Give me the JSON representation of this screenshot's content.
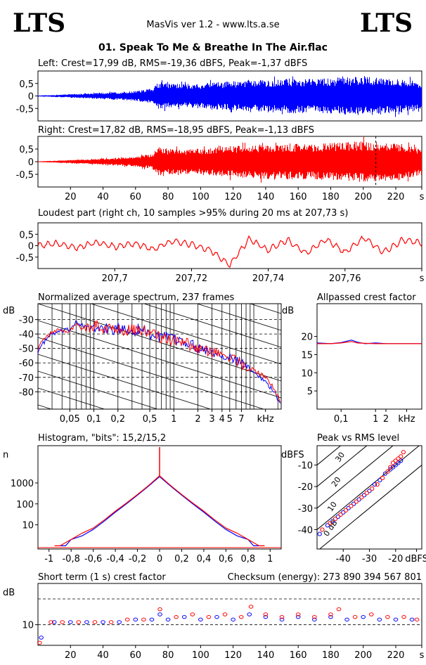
{
  "header": {
    "logo_left": "LTS",
    "logo_right": "LTS",
    "app_title": "MasVis ver 1.2 - www.lts.a.se",
    "file_title": "01. Speak To Me & Breathe In The Air.flac"
  },
  "colors": {
    "left": "#0000ff",
    "right": "#ff0000",
    "axis": "#000000"
  },
  "chart_data": [
    {
      "id": "left-waveform",
      "type": "area",
      "title": "Left: Crest=17,99 dB, RMS=-19,36 dBFS, Peak=-1,37 dBFS",
      "yticks": [
        "0,5",
        "0",
        "-0,5"
      ],
      "ytick_values": [
        0.5,
        0,
        -0.5
      ],
      "ylim": [
        -1,
        1
      ],
      "xlim": [
        0,
        236
      ],
      "series": [
        {
          "color": "#0000ff",
          "envelope_t": [
            0,
            10,
            20,
            30,
            40,
            50,
            60,
            65,
            70,
            73,
            76,
            80,
            90,
            100,
            110,
            120,
            130,
            140,
            150,
            160,
            170,
            180,
            190,
            200,
            210,
            220,
            230,
            236
          ],
          "envelope_amp": [
            0.02,
            0.04,
            0.07,
            0.1,
            0.13,
            0.16,
            0.2,
            0.25,
            0.3,
            0.5,
            0.55,
            0.5,
            0.48,
            0.5,
            0.55,
            0.6,
            0.62,
            0.65,
            0.68,
            0.7,
            0.68,
            0.72,
            0.75,
            0.78,
            0.75,
            0.72,
            0.62,
            0.5
          ]
        }
      ]
    },
    {
      "id": "right-waveform",
      "type": "area",
      "title": "Right: Crest=17,82 dB, RMS=-18,95 dBFS, Peak=-1,13 dBFS",
      "yticks": [
        "0,5",
        "0",
        "-0,5"
      ],
      "ytick_values": [
        0.5,
        0,
        -0.5
      ],
      "ylim": [
        -1,
        1
      ],
      "xlim": [
        0,
        236
      ],
      "xticks": [
        "20",
        "40",
        "60",
        "80",
        "100",
        "120",
        "140",
        "160",
        "180",
        "200",
        "220",
        "s"
      ],
      "xtick_values": [
        20,
        40,
        60,
        80,
        100,
        120,
        140,
        160,
        180,
        200,
        220,
        236
      ],
      "marker_at": 207.73,
      "series": [
        {
          "color": "#ff0000",
          "envelope_t": [
            0,
            10,
            20,
            30,
            40,
            50,
            60,
            65,
            70,
            73,
            76,
            80,
            90,
            100,
            110,
            120,
            130,
            140,
            150,
            160,
            170,
            180,
            190,
            200,
            210,
            220,
            230,
            236
          ],
          "envelope_amp": [
            0.02,
            0.04,
            0.07,
            0.1,
            0.13,
            0.16,
            0.2,
            0.25,
            0.3,
            0.55,
            0.6,
            0.5,
            0.5,
            0.52,
            0.58,
            0.62,
            0.65,
            0.68,
            0.7,
            0.72,
            0.7,
            0.74,
            0.78,
            0.8,
            0.78,
            0.75,
            0.65,
            0.52
          ]
        }
      ]
    },
    {
      "id": "loudest-part",
      "type": "line",
      "title": "Loudest part (right ch, 10 samples >95% during 20 ms at 207,73 s)",
      "yticks": [
        "0,5",
        "0",
        "-0,5"
      ],
      "ytick_values": [
        0.5,
        0,
        -0.5
      ],
      "ylim": [
        -1,
        1
      ],
      "xlim": [
        207.68,
        207.78
      ],
      "xticks": [
        "207,7",
        "207,72",
        "207,74",
        "207,76",
        "s"
      ],
      "xtick_values": [
        207.7,
        207.72,
        207.74,
        207.76,
        207.78
      ],
      "series": [
        {
          "color": "#ff0000",
          "x": [
            207.68,
            207.685,
            207.69,
            207.695,
            207.7,
            207.705,
            207.71,
            207.715,
            207.72,
            207.725,
            207.73,
            207.735,
            207.74,
            207.745,
            207.75,
            207.755,
            207.76,
            207.765,
            207.77,
            207.775,
            207.78
          ],
          "y": [
            0.0,
            0.1,
            -0.1,
            0.15,
            -0.05,
            0.1,
            -0.15,
            0.2,
            0.05,
            -0.2,
            -0.85,
            0.3,
            -0.2,
            0.25,
            -0.35,
            0.3,
            -0.3,
            0.35,
            -0.3,
            0.25,
            0.1
          ]
        }
      ]
    },
    {
      "id": "spectrum",
      "type": "line",
      "title": "Normalized average spectrum, 237 frames",
      "ylabel": "dB",
      "xlabel": "kHz",
      "yticks": [
        "-30",
        "-40",
        "-50",
        "-60",
        "-70",
        "-80"
      ],
      "ytick_values": [
        -30,
        -40,
        -50,
        -60,
        -70,
        -80
      ],
      "ylim": [
        -92,
        -19
      ],
      "xscale": "log",
      "xlim": [
        0.02,
        22
      ],
      "xticks": [
        "0,05",
        "0,1",
        "0,2",
        "0,5",
        "1",
        "2",
        "3",
        "4",
        "5",
        "7",
        "kHz"
      ],
      "xtick_values": [
        0.05,
        0.1,
        0.2,
        0.5,
        1,
        2,
        3,
        4,
        5,
        7,
        14
      ],
      "series": [
        {
          "color": "#0000ff",
          "x": [
            0.02,
            0.025,
            0.03,
            0.04,
            0.05,
            0.06,
            0.08,
            0.1,
            0.13,
            0.16,
            0.2,
            0.3,
            0.4,
            0.5,
            0.7,
            1,
            1.5,
            2,
            3,
            4,
            5,
            7,
            10,
            14,
            18,
            22
          ],
          "y": [
            -52,
            -44,
            -40,
            -38,
            -37,
            -31,
            -36,
            -37,
            -35,
            -38,
            -36,
            -38,
            -36,
            -40,
            -42,
            -44,
            -46,
            -49,
            -52,
            -53,
            -57,
            -60,
            -66,
            -73,
            -80,
            -90
          ]
        },
        {
          "color": "#ff0000",
          "x": [
            0.02,
            0.025,
            0.03,
            0.04,
            0.05,
            0.06,
            0.08,
            0.1,
            0.13,
            0.16,
            0.2,
            0.3,
            0.4,
            0.5,
            0.7,
            1,
            1.5,
            2,
            3,
            4,
            5,
            7,
            10,
            14,
            18,
            22
          ],
          "y": [
            -50,
            -42,
            -39,
            -37,
            -38,
            -33,
            -36,
            -34,
            -36,
            -35,
            -37,
            -37,
            -37,
            -39,
            -43,
            -45,
            -47,
            -50,
            -53,
            -54,
            -56,
            -61,
            -65,
            -70,
            -78,
            -88
          ]
        }
      ]
    },
    {
      "id": "allpassed-crest",
      "type": "line",
      "title": "Allpassed crest factor",
      "ylabel": "dB",
      "xlabel": "kHz",
      "yticks": [
        "20",
        "15",
        "10",
        "5"
      ],
      "ytick_values": [
        20,
        15,
        10,
        5
      ],
      "ylim": [
        0,
        29
      ],
      "xscale": "log",
      "xlim": [
        0.02,
        22
      ],
      "xticks": [
        "0,1",
        "1",
        "2",
        "kHz"
      ],
      "xtick_values": [
        0.1,
        1,
        2,
        8
      ],
      "series": [
        {
          "color": "#0000ff",
          "x": [
            0.02,
            0.05,
            0.1,
            0.2,
            0.3,
            0.5,
            1,
            2,
            5,
            10,
            22
          ],
          "y": [
            18.2,
            18,
            18.3,
            19,
            18.4,
            18,
            18.2,
            18,
            18,
            18,
            18
          ]
        },
        {
          "color": "#ff0000",
          "x": [
            0.02,
            0.05,
            0.1,
            0.2,
            0.3,
            0.5,
            1,
            2,
            5,
            10,
            22
          ],
          "y": [
            18,
            18,
            18.2,
            18.6,
            18.2,
            18.1,
            18,
            18,
            18,
            18,
            18
          ]
        }
      ]
    },
    {
      "id": "histogram",
      "type": "line",
      "title": "Histogram, \"bits\": 15,2/15,2",
      "ylabel": "n",
      "yscale": "log",
      "yticks": [
        "1000",
        "100",
        "10"
      ],
      "ytick_values": [
        1000,
        100,
        10
      ],
      "ylim": [
        0.7,
        60000
      ],
      "xlim": [
        -1.1,
        1.1
      ],
      "xticks": [
        "-1",
        "-0,8",
        "-0,6",
        "-0,4",
        "-0,2",
        "0",
        "0,2",
        "0,4",
        "0,6",
        "0,8",
        "1"
      ],
      "xtick_values": [
        -1,
        -0.8,
        -0.6,
        -0.4,
        -0.2,
        0,
        0.2,
        0.4,
        0.6,
        0.8,
        1
      ],
      "series": [
        {
          "color": "#0000ff",
          "x": [
            -0.9,
            -0.85,
            -0.8,
            -0.7,
            -0.6,
            -0.5,
            -0.4,
            -0.3,
            -0.2,
            -0.1,
            0,
            0.1,
            0.2,
            0.3,
            0.4,
            0.5,
            0.6,
            0.7,
            0.8,
            0.85,
            0.9
          ],
          "y": [
            1,
            1,
            2,
            3,
            6,
            15,
            40,
            100,
            260,
            700,
            2000,
            700,
            260,
            100,
            40,
            15,
            6,
            3,
            2,
            1,
            1
          ]
        },
        {
          "color": "#ff0000",
          "x": [
            -0.95,
            -0.9,
            -0.8,
            -0.7,
            -0.6,
            -0.5,
            -0.4,
            -0.3,
            -0.2,
            -0.1,
            0,
            0.1,
            0.2,
            0.3,
            0.4,
            0.5,
            0.6,
            0.7,
            0.8,
            0.9,
            0.95
          ],
          "y": [
            1,
            1,
            2,
            4,
            7,
            17,
            45,
            110,
            280,
            750,
            2200,
            750,
            280,
            110,
            45,
            17,
            7,
            4,
            2,
            1,
            1
          ]
        }
      ]
    },
    {
      "id": "peak-vs-rms",
      "type": "scatter",
      "title": "Peak vs RMS level",
      "ylabel": "dBFS",
      "xlabel": "dBFS",
      "yticks": [
        "-10",
        "-20",
        "-30",
        "-40"
      ],
      "ytick_values": [
        -10,
        -20,
        -30,
        -40
      ],
      "ylim": [
        -49,
        -1
      ],
      "xlim": [
        -50,
        -10
      ],
      "xticks": [
        "-40",
        "-30",
        "-20",
        "dBFS"
      ],
      "xtick_values": [
        -40,
        -30,
        -20,
        -12
      ],
      "diagonal_labels": [
        "40",
        "30",
        "20",
        "10",
        "0 dB"
      ],
      "diagonal_values": [
        40,
        30,
        20,
        10,
        0
      ],
      "series": [
        {
          "color": "#0000ff",
          "x": [
            -49,
            -46,
            -44,
            -42,
            -40,
            -38,
            -36,
            -34,
            -32,
            -30,
            -28,
            -26,
            -24,
            -22,
            -21,
            -20,
            -19,
            -18
          ],
          "y": [
            -42,
            -38,
            -36,
            -34,
            -32,
            -30,
            -28,
            -26,
            -24,
            -22,
            -19,
            -17,
            -14,
            -12,
            -11,
            -10,
            -9,
            -8
          ]
        },
        {
          "color": "#ff0000",
          "x": [
            -48,
            -45,
            -43,
            -41,
            -39,
            -37,
            -35,
            -33,
            -31,
            -29,
            -27,
            -25,
            -23,
            -22,
            -21,
            -20,
            -19,
            -18,
            -17
          ],
          "y": [
            -40,
            -37,
            -35,
            -33,
            -31,
            -29,
            -27,
            -25,
            -23,
            -21,
            -19,
            -16,
            -13,
            -11,
            -9,
            -8,
            -7,
            -6,
            -4
          ]
        }
      ]
    },
    {
      "id": "short-term-crest",
      "type": "scatter",
      "title": "Short term (1 s) crest factor",
      "checksum": "Checksum (energy):   273 890 394 567 801",
      "ylabel": "dB",
      "yticks": [
        "10"
      ],
      "ytick_values": [
        10
      ],
      "ylim": [
        2,
        26
      ],
      "dashed_lines": [
        20,
        10
      ],
      "xlim": [
        0,
        236
      ],
      "xticks": [
        "20",
        "40",
        "60",
        "80",
        "100",
        "120",
        "140",
        "160",
        "180",
        "200",
        "220",
        "s"
      ],
      "xtick_values": [
        20,
        40,
        60,
        80,
        100,
        120,
        140,
        160,
        180,
        200,
        220,
        236
      ],
      "series": [
        {
          "color": "#0000ff",
          "x": [
            2,
            10,
            20,
            30,
            40,
            50,
            60,
            70,
            75,
            80,
            90,
            100,
            110,
            120,
            130,
            140,
            150,
            160,
            170,
            180,
            190,
            200,
            210,
            220,
            230
          ],
          "y": [
            5,
            11,
            11,
            11,
            11,
            11,
            12,
            12,
            14,
            12,
            13,
            12,
            13,
            12,
            14,
            13,
            12,
            13,
            12,
            13,
            12,
            13,
            12,
            12,
            12
          ]
        },
        {
          "color": "#ff0000",
          "x": [
            1,
            8,
            15,
            25,
            35,
            45,
            55,
            65,
            75,
            85,
            95,
            105,
            115,
            125,
            131,
            140,
            150,
            160,
            170,
            180,
            185,
            195,
            205,
            215,
            225,
            233
          ],
          "y": [
            3,
            11,
            11,
            11,
            11,
            11,
            12,
            12,
            16,
            13,
            14,
            13,
            14,
            13,
            17,
            14,
            13,
            14,
            13,
            14,
            16,
            13,
            14,
            13,
            13,
            12
          ]
        }
      ]
    }
  ]
}
